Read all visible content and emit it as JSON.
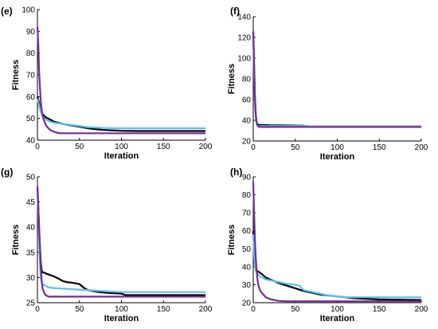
{
  "chart_data": [
    {
      "type": "line",
      "panel_label": "(e)",
      "xlabel": "Iteration",
      "ylabel": "Fitness",
      "xlim": [
        0,
        200
      ],
      "ylim": [
        40,
        100
      ],
      "xticks": [
        0,
        50,
        100,
        150,
        200
      ],
      "yticks": [
        40,
        50,
        60,
        70,
        80,
        90,
        100
      ],
      "grid": false,
      "series": [
        {
          "color": "#000000",
          "x": [
            0,
            2,
            4,
            6,
            10,
            15,
            20,
            30,
            40,
            50,
            60,
            70,
            80,
            100,
            120,
            150,
            200
          ],
          "y": [
            60,
            57,
            54,
            52,
            50.5,
            49.5,
            48.5,
            47.5,
            46.8,
            46.2,
            45.5,
            45,
            44.7,
            44.3,
            44.2,
            44.2,
            44.2
          ]
        },
        {
          "color": "#5bc0eb",
          "x": [
            0,
            2,
            4,
            6,
            10,
            15,
            20,
            30,
            40,
            50,
            60,
            70,
            80,
            100,
            120,
            150,
            200
          ],
          "y": [
            59,
            56,
            53,
            51,
            49.5,
            48.5,
            48,
            47.5,
            47,
            46.5,
            46,
            45.8,
            45.6,
            45.5,
            45.5,
            45.5,
            45.5
          ]
        },
        {
          "color": "#7a2b96",
          "x": [
            0,
            1,
            2,
            3,
            4,
            5,
            7,
            10,
            13,
            16,
            20,
            25,
            30,
            40,
            60,
            100,
            200
          ],
          "y": [
            92,
            84,
            72,
            64,
            58,
            54,
            50,
            47,
            45.5,
            44.5,
            43.8,
            43.3,
            43.2,
            43.2,
            43.2,
            43.2,
            43.2
          ]
        }
      ]
    },
    {
      "type": "line",
      "panel_label": "(f)",
      "xlabel": "Iteration",
      "ylabel": "Fitness",
      "xlim": [
        0,
        200
      ],
      "ylim": [
        20,
        140
      ],
      "xticks": [
        0,
        50,
        100,
        150,
        200
      ],
      "yticks": [
        20,
        40,
        60,
        80,
        100,
        120,
        140
      ],
      "grid": false,
      "series": [
        {
          "color": "#000000",
          "x": [
            0,
            1,
            2,
            3,
            4,
            5,
            7,
            10,
            20,
            40,
            60,
            65,
            80,
            100,
            150,
            200
          ],
          "y": [
            125,
            90,
            60,
            45,
            38,
            36,
            35.5,
            35.5,
            35.2,
            35,
            34.8,
            34,
            34,
            34,
            34,
            34
          ]
        },
        {
          "color": "#5bc0eb",
          "x": [
            0,
            1,
            2,
            3,
            4,
            5,
            7,
            10,
            20,
            40,
            65,
            70,
            100,
            150,
            200
          ],
          "y": [
            122,
            85,
            55,
            42,
            37,
            35,
            34.5,
            34.5,
            34.5,
            34.5,
            34.5,
            34,
            34,
            34,
            34
          ]
        },
        {
          "color": "#7a2b96",
          "x": [
            0,
            1,
            2,
            3,
            4,
            5,
            7,
            10,
            20,
            50,
            100,
            150,
            200
          ],
          "y": [
            126,
            95,
            65,
            45,
            38,
            35,
            33.5,
            33.5,
            33.5,
            33.5,
            33.5,
            33.5,
            33.5
          ]
        }
      ]
    },
    {
      "type": "line",
      "panel_label": "(g)",
      "xlabel": "Iteration",
      "ylabel": "Fitness",
      "xlim": [
        0,
        200
      ],
      "ylim": [
        25,
        50
      ],
      "xticks": [
        0,
        50,
        100,
        150,
        200
      ],
      "yticks": [
        25,
        30,
        35,
        40,
        45,
        50
      ],
      "grid": false,
      "series": [
        {
          "color": "#000000",
          "x": [
            0,
            1,
            2,
            3,
            4,
            5,
            6,
            8,
            10,
            15,
            20,
            25,
            30,
            35,
            40,
            50,
            55,
            60,
            70,
            80,
            90,
            100,
            105,
            150,
            200
          ],
          "y": [
            48,
            44,
            40,
            36,
            33,
            31.5,
            31,
            31,
            30.8,
            30.5,
            30.2,
            29.8,
            29.3,
            29.1,
            29,
            28.7,
            28,
            27.5,
            27.2,
            27,
            26.9,
            26.8,
            26.5,
            26.5,
            26.5
          ]
        },
        {
          "color": "#5bc0eb",
          "x": [
            0,
            1,
            2,
            3,
            4,
            5,
            6,
            8,
            10,
            15,
            20,
            30,
            40,
            50,
            60,
            70,
            80,
            90,
            100,
            150,
            200
          ],
          "y": [
            47.5,
            43,
            38,
            33,
            30,
            29,
            28.8,
            28.5,
            28.3,
            28,
            27.9,
            27.8,
            27.7,
            27.6,
            27.5,
            27.4,
            27.3,
            27.2,
            27.1,
            27.1,
            27.1
          ]
        },
        {
          "color": "#7a2b96",
          "x": [
            0,
            1,
            2,
            3,
            4,
            5,
            6,
            8,
            10,
            12,
            14,
            20,
            50,
            100,
            200
          ],
          "y": [
            48,
            44,
            40,
            36,
            32,
            29.5,
            28,
            27,
            26.5,
            26.3,
            26.2,
            26.2,
            26.2,
            26.2,
            26.2
          ]
        }
      ]
    },
    {
      "type": "line",
      "panel_label": "(h)",
      "xlabel": "Iteration",
      "ylabel": "Fitness",
      "xlim": [
        0,
        200
      ],
      "ylim": [
        20,
        90
      ],
      "xticks": [
        0,
        50,
        100,
        150,
        200
      ],
      "yticks": [
        20,
        30,
        40,
        50,
        60,
        70,
        80,
        90
      ],
      "grid": false,
      "series": [
        {
          "color": "#000000",
          "x": [
            0,
            1,
            2,
            3,
            4,
            5,
            7,
            10,
            15,
            20,
            25,
            30,
            40,
            50,
            60,
            70,
            80,
            90,
            100,
            120,
            150,
            200
          ],
          "y": [
            60,
            48,
            42,
            39,
            38,
            37.5,
            37,
            36,
            34,
            33,
            32,
            31,
            29.5,
            28,
            26.5,
            25.5,
            24.5,
            24,
            23.5,
            22.5,
            21.8,
            21.5
          ]
        },
        {
          "color": "#5bc0eb",
          "x": [
            0,
            1,
            2,
            3,
            4,
            5,
            7,
            10,
            15,
            20,
            25,
            30,
            40,
            50,
            55,
            60,
            70,
            80,
            90,
            100,
            110,
            150,
            200
          ],
          "y": [
            58,
            46,
            40,
            38,
            37,
            36,
            35,
            34,
            33,
            32.5,
            32,
            31.5,
            30.5,
            30,
            29.5,
            27,
            26,
            25,
            24,
            23.5,
            23,
            23,
            23
          ]
        },
        {
          "color": "#7a2b96",
          "x": [
            0,
            1,
            2,
            3,
            4,
            5,
            6,
            8,
            10,
            12,
            15,
            20,
            25,
            30,
            40,
            50,
            100,
            200
          ],
          "y": [
            87,
            70,
            55,
            45,
            38,
            33,
            30,
            27,
            25.5,
            24.5,
            23,
            22,
            21.5,
            21,
            20.8,
            20.8,
            20.8,
            20.8
          ]
        }
      ]
    }
  ]
}
